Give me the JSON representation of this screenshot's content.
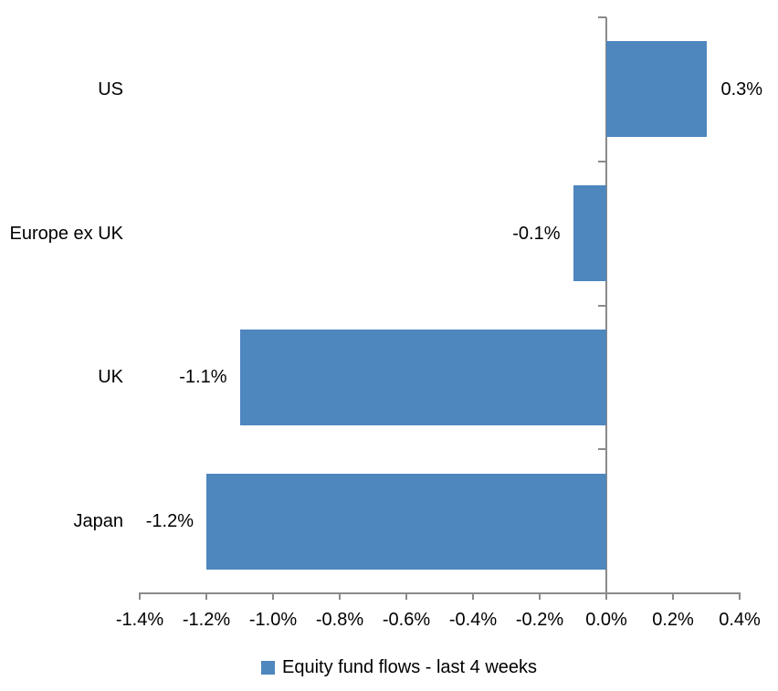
{
  "chart_data": {
    "type": "bar",
    "orientation": "horizontal",
    "categories": [
      "US",
      "Europe ex UK",
      "UK",
      "Japan"
    ],
    "series": [
      {
        "name": "Equity fund flows - last 4 weeks",
        "values": [
          0.3,
          -0.1,
          -1.1,
          -1.2
        ]
      }
    ],
    "data_labels": [
      "0.3%",
      "-0.1%",
      "-1.1%",
      "-1.2%"
    ],
    "x_ticks": [
      -1.4,
      -1.2,
      -1.0,
      -0.8,
      -0.6,
      -0.4,
      -0.2,
      0.0,
      0.2,
      0.4
    ],
    "x_tick_labels": [
      "-1.4%",
      "-1.2%",
      "-1.0%",
      "-0.8%",
      "-0.6%",
      "-0.4%",
      "-0.2%",
      "0.0%",
      "0.2%",
      "0.4%"
    ],
    "xlim": [
      -1.4,
      0.4
    ],
    "title": "",
    "xlabel": "",
    "ylabel": "",
    "grid": false,
    "legend": {
      "position": "bottom",
      "entries": [
        "Equity fund flows - last 4 weeks"
      ]
    },
    "colors": {
      "bar": "#4e86be",
      "axis": "#8a8a8a",
      "text": "#000000"
    }
  }
}
